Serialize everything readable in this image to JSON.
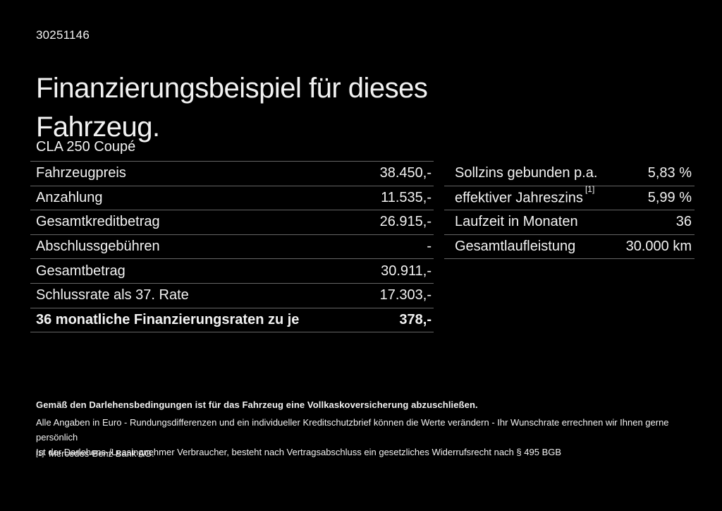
{
  "page": {
    "doc_id": "30251146",
    "title": "Finanzierungsbeispiel für dieses Fahrzeug.",
    "subtitle": "CLA 250 Coupé"
  },
  "left_table": {
    "rows": [
      {
        "label": "Fahrzeugpreis",
        "value": "38.450,-"
      },
      {
        "label": "Anzahlung",
        "value": "11.535,-"
      },
      {
        "label": "Gesamtkreditbetrag",
        "value": "26.915,-"
      },
      {
        "label": "Abschlussgebühren",
        "value": "-"
      },
      {
        "label": "Gesamtbetrag",
        "value": "30.911,-"
      },
      {
        "label": "Schlussrate als 37. Rate",
        "value": "17.303,-"
      },
      {
        "label": "36 monatliche Finanzierungsraten zu je",
        "value": "378,-"
      }
    ]
  },
  "right_table": {
    "rows": [
      {
        "label": "Sollzins gebunden p.a.",
        "sup": "",
        "value": "5,83 %"
      },
      {
        "label": "effektiver Jahreszins",
        "sup": "[1]",
        "value": "5,99 %"
      },
      {
        "label": "Laufzeit in Monaten",
        "sup": "",
        "value": "36"
      },
      {
        "label": "Gesamtlaufleistung",
        "sup": "",
        "value": "30.000 km"
      }
    ]
  },
  "footer": {
    "bold_note": "Gemäß den Darlehensbedingungen ist für das Fahrzeug eine Vollkaskoversicherung abzuschließen.",
    "note_line1": "Alle Angaben in Euro - Rundungsdifferenzen und ein individueller Kreditschutzbrief können die Werte verändern - Ihr Wunschrate errechnen wir Ihnen gerne persönlich",
    "note_line2": "Ist der Darlehens-/Leasingnehmer Verbraucher, besteht nach Vertragsabschluss ein gesetzliches Widerrufsrecht nach § 495 BGB",
    "footnote_marker": "[1]",
    "footnote_text": "Mercedes-Benz Bank AG."
  },
  "colors": {
    "background": "#000000",
    "text": "#f2f2f2",
    "divider": "#666666"
  }
}
